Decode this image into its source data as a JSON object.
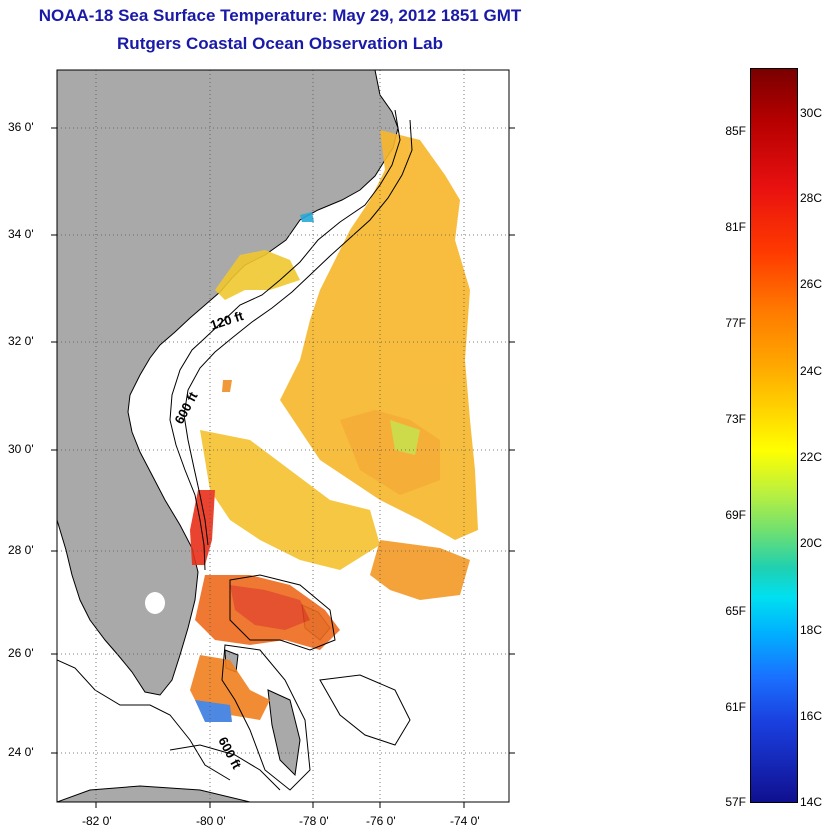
{
  "header": {
    "title": "NOAA-18 Sea Surface Temperature:  May 29, 2012 1851 GMT",
    "subtitle": "Rutgers Coastal Ocean Observation Lab"
  },
  "map": {
    "lat_labels": [
      "36 0'",
      "34 0'",
      "32 0'",
      "30 0'",
      "28 0'",
      "26 0'",
      "24 0'"
    ],
    "lon_labels": [
      "-82 0'",
      "-80 0'",
      "-78 0'",
      "-76 0'",
      "-74 0'"
    ],
    "contours": [
      {
        "label": "120 ft"
      },
      {
        "label": "600 ft"
      },
      {
        "label": "600 ft"
      }
    ],
    "land_color": "#a9a9a9",
    "ocean_color": "#ffffff"
  },
  "colorbar": {
    "fahrenheit": [
      "85F",
      "81F",
      "77F",
      "73F",
      "69F",
      "65F",
      "61F",
      "57F"
    ],
    "celsius": [
      "30C",
      "28C",
      "26C",
      "24C",
      "22C",
      "20C",
      "18C",
      "16C",
      "14C"
    ]
  }
}
